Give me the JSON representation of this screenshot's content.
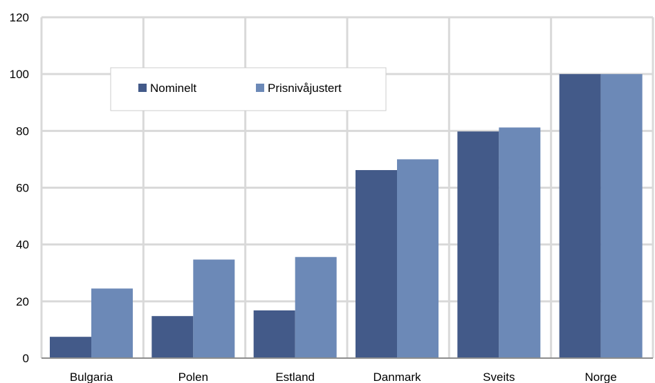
{
  "chart_data": {
    "type": "bar",
    "categories": [
      "Bulgaria",
      "Polen",
      "Estland",
      "Danmark",
      "Sveits",
      "Norge"
    ],
    "series": [
      {
        "name": "Nominelt",
        "values": [
          7.5,
          14.8,
          16.8,
          66.2,
          79.8,
          100
        ]
      },
      {
        "name": "Prisnivåjustert",
        "values": [
          24.5,
          34.7,
          35.6,
          70.0,
          81.2,
          100
        ]
      }
    ],
    "ylim": [
      0,
      120
    ],
    "yticks": [
      0,
      20,
      40,
      60,
      80,
      100,
      120
    ],
    "grid": true,
    "legend": "upper-left-inside",
    "colors": [
      "#435a89",
      "#6c89b7"
    ]
  }
}
